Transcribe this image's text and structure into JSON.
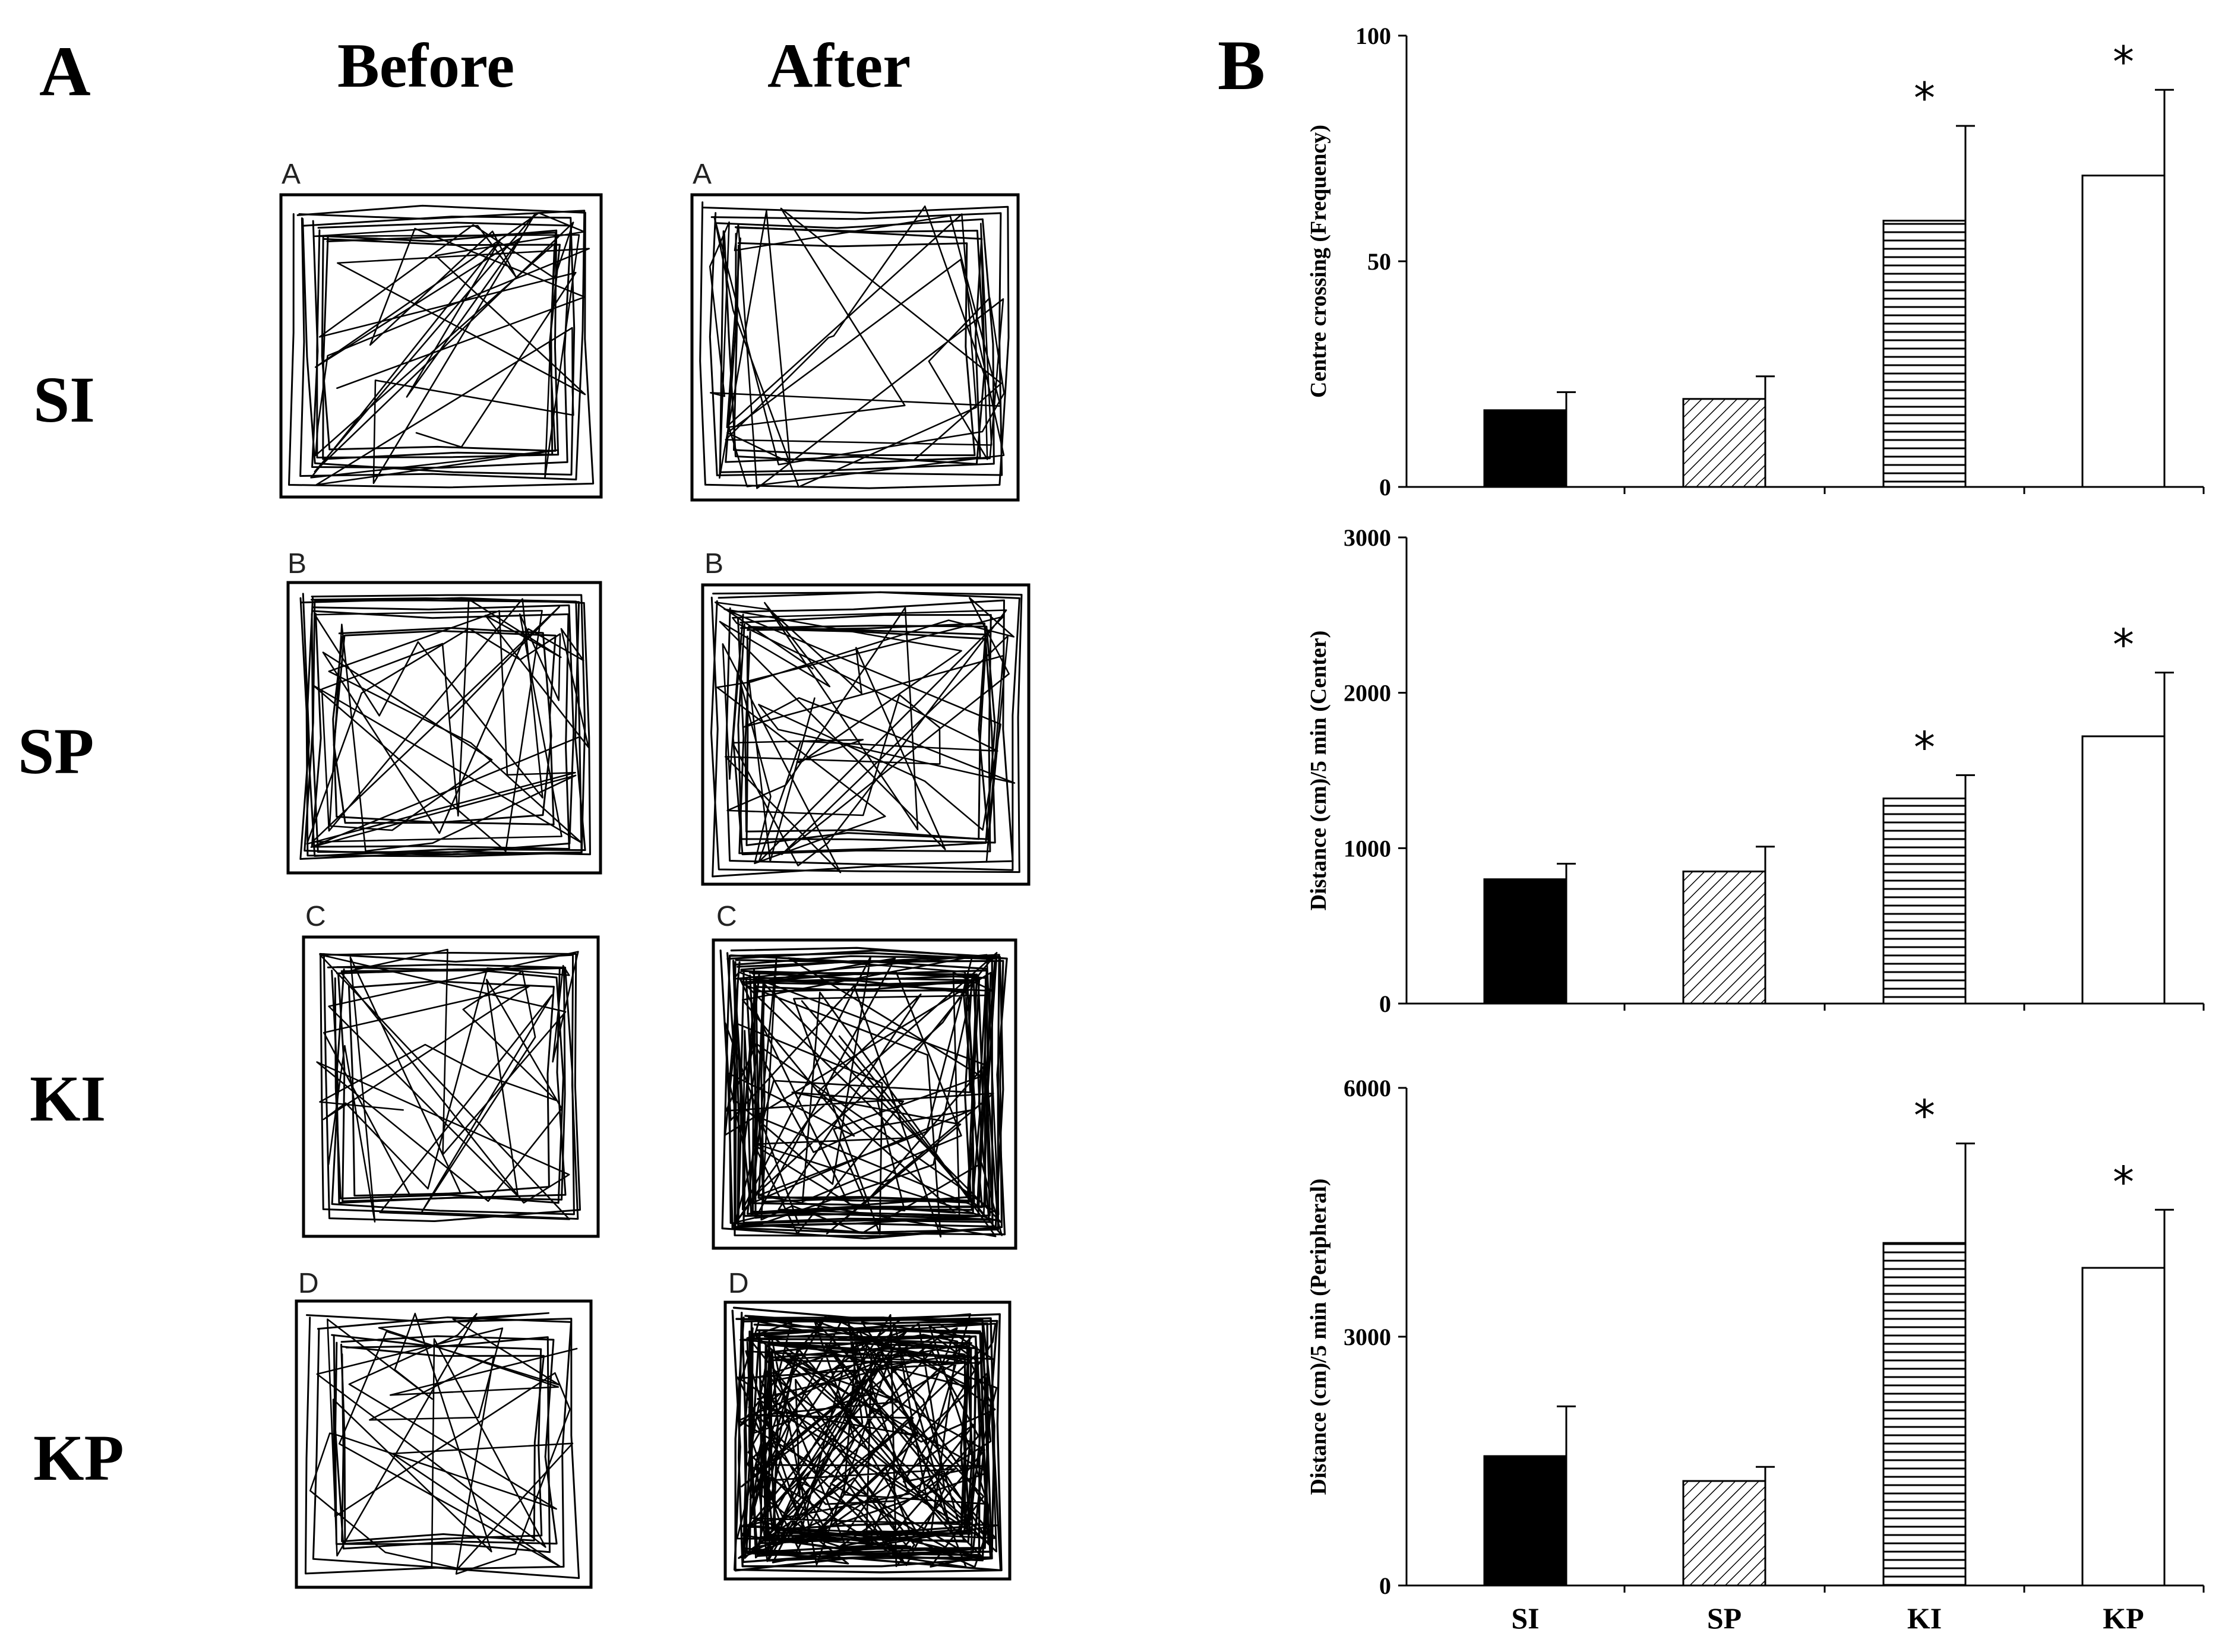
{
  "panel_a": {
    "letter": "A",
    "col_before": "Before",
    "col_after": "After",
    "rows": [
      {
        "label": "SI",
        "box_letter": "A"
      },
      {
        "label": "SP",
        "box_letter": "B"
      },
      {
        "label": "KI",
        "box_letter": "C"
      },
      {
        "label": "KP",
        "box_letter": "D"
      }
    ]
  },
  "panel_b": {
    "letter": "B"
  },
  "colors": {
    "bar": "#000000",
    "background": "#ffffff"
  },
  "chart_data": [
    {
      "type": "bar",
      "categories": [
        "SI",
        "SP",
        "KI",
        "KP"
      ],
      "values": [
        17,
        19.5,
        59,
        69
      ],
      "errors": [
        4,
        5,
        21,
        19
      ],
      "significant": [
        false,
        false,
        true,
        true
      ],
      "star_symbol": "*",
      "patterns": [
        "solid",
        "diagonal",
        "horizontal",
        "empty"
      ],
      "ylabel": "Centre crossing (Frequency)",
      "ylim": [
        0,
        100
      ],
      "yticks": [
        0,
        50,
        100
      ],
      "show_categories": false
    },
    {
      "type": "bar",
      "categories": [
        "SI",
        "SP",
        "KI",
        "KP"
      ],
      "values": [
        800,
        850,
        1320,
        1720
      ],
      "errors": [
        100,
        160,
        150,
        410
      ],
      "significant": [
        false,
        false,
        true,
        true
      ],
      "star_symbol": "*",
      "patterns": [
        "solid",
        "diagonal",
        "horizontal",
        "empty"
      ],
      "ylabel": "Distance (cm)/5 min (Center)",
      "ylim": [
        0,
        3000
      ],
      "yticks": [
        0,
        1000,
        2000,
        3000
      ],
      "show_categories": false
    },
    {
      "type": "bar",
      "categories": [
        "SI",
        "SP",
        "KI",
        "KP"
      ],
      "values": [
        1560,
        1260,
        4130,
        3830
      ],
      "errors": [
        600,
        170,
        1200,
        700
      ],
      "significant": [
        false,
        false,
        true,
        true
      ],
      "star_symbol": "*",
      "patterns": [
        "solid",
        "diagonal",
        "horizontal",
        "empty"
      ],
      "ylabel": "Distance (cm)/5 min (Peripheral)",
      "ylim": [
        0,
        6000
      ],
      "yticks": [
        0,
        3000,
        6000
      ],
      "show_categories": true
    }
  ]
}
